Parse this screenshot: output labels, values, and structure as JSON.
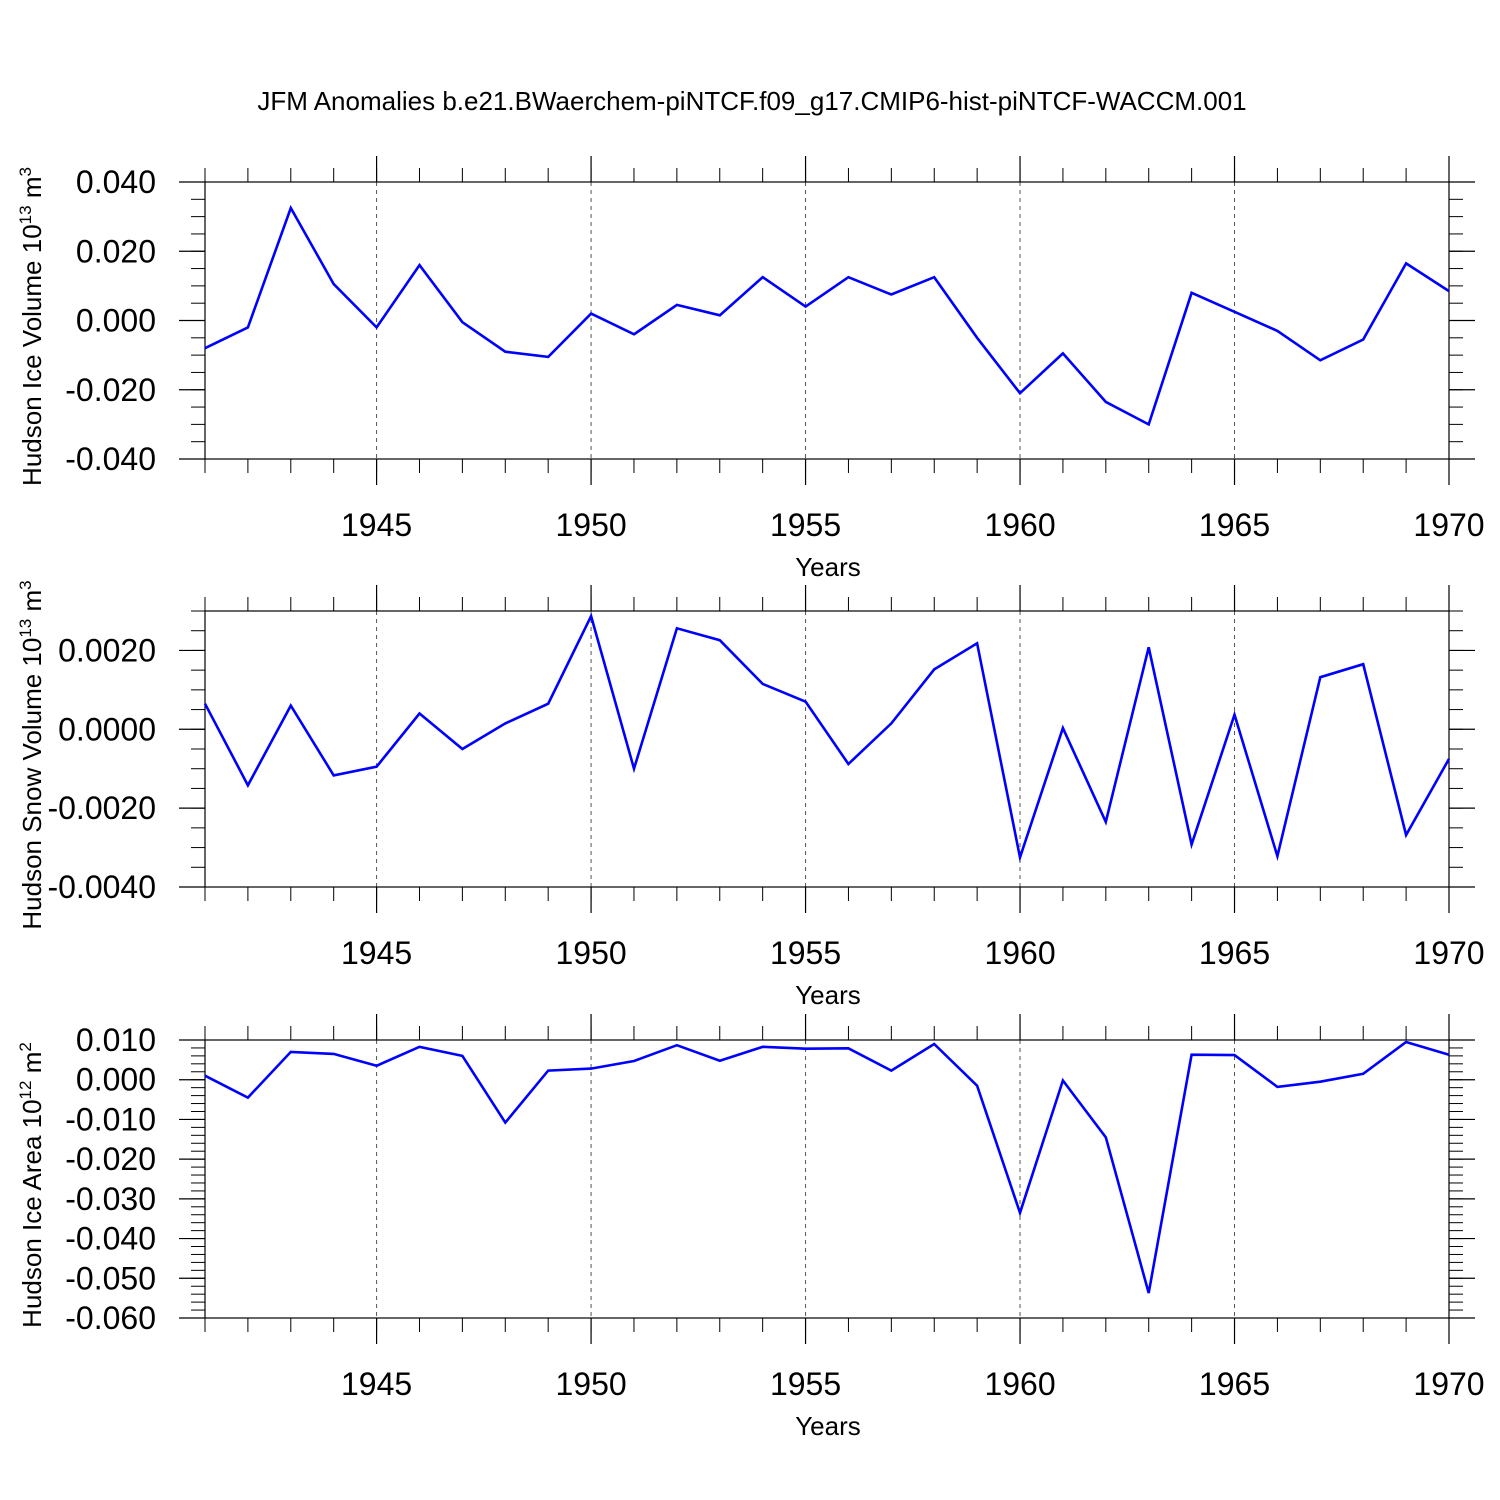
{
  "title": "JFM Anomalies b.e21.BWaerchem-piNTCF.f09_g17.CMIP6-hist-piNTCF-WACCM.001",
  "series_color": "#0000ff",
  "chart_data": [
    {
      "type": "line",
      "ylabel": "Hudson Ice Volume",
      "ylabel_unit_base": "10",
      "ylabel_unit_exp": "13",
      "ylabel_unit_tail": " m",
      "ylabel_unit_tail_exp": "3",
      "xlabel": "Years",
      "xlim": [
        1941,
        1970
      ],
      "ylim": [
        -0.04,
        0.04
      ],
      "xticks": [
        1945,
        1950,
        1955,
        1960,
        1965,
        1970
      ],
      "xtick_labels": [
        "1945",
        "1950",
        "1955",
        "1960",
        "1965",
        "1970"
      ],
      "yticks": [
        -0.04,
        -0.02,
        0.0,
        0.02,
        0.04
      ],
      "ytick_labels": [
        "-0.040",
        "-0.020",
        "0.000",
        "0.020",
        "0.040"
      ],
      "ytick_minor_step": 0.005,
      "x": [
        1941,
        1942,
        1943,
        1944,
        1945,
        1946,
        1947,
        1948,
        1949,
        1950,
        1951,
        1952,
        1953,
        1954,
        1955,
        1956,
        1957,
        1958,
        1959,
        1960,
        1961,
        1962,
        1963,
        1964,
        1965,
        1966,
        1967,
        1968,
        1969,
        1970
      ],
      "values": [
        -0.008,
        -0.002,
        0.0325,
        0.0105,
        -0.002,
        0.016,
        -0.0005,
        -0.009,
        -0.0105,
        0.002,
        -0.004,
        0.0045,
        0.0015,
        0.0125,
        0.004,
        0.0125,
        0.0075,
        0.0125,
        -0.005,
        -0.021,
        -0.0095,
        -0.0235,
        -0.03,
        0.008,
        0.0025,
        -0.003,
        -0.0115,
        -0.0055,
        0.0165,
        0.0085
      ]
    },
    {
      "type": "line",
      "ylabel": "Hudson Snow Volume",
      "ylabel_unit_base": "10",
      "ylabel_unit_exp": "13",
      "ylabel_unit_tail": " m",
      "ylabel_unit_tail_exp": "3",
      "xlabel": "Years",
      "xlim": [
        1941,
        1970
      ],
      "ylim": [
        -0.004,
        0.003
      ],
      "xticks": [
        1945,
        1950,
        1955,
        1960,
        1965,
        1970
      ],
      "xtick_labels": [
        "1945",
        "1950",
        "1955",
        "1960",
        "1965",
        "1970"
      ],
      "yticks": [
        -0.004,
        -0.002,
        0.0,
        0.002
      ],
      "ytick_labels": [
        "-0.0040",
        "-0.0020",
        "0.0000",
        "0.0020"
      ],
      "ytick_minor_step": 0.0005,
      "x": [
        1941,
        1942,
        1943,
        1944,
        1945,
        1946,
        1947,
        1948,
        1949,
        1950,
        1951,
        1952,
        1953,
        1954,
        1955,
        1956,
        1957,
        1958,
        1959,
        1960,
        1961,
        1962,
        1963,
        1964,
        1965,
        1966,
        1967,
        1968,
        1969,
        1970
      ],
      "values": [
        0.00065,
        -0.00142,
        0.0006,
        -0.00117,
        -0.00095,
        0.0004,
        -0.0005,
        0.00015,
        0.00065,
        0.00287,
        -0.001,
        0.00256,
        0.00226,
        0.00115,
        0.0007,
        -0.00088,
        0.00015,
        0.00152,
        0.00218,
        -0.00325,
        3e-05,
        -0.00235,
        0.00208,
        -0.00292,
        0.00037,
        -0.00322,
        0.00132,
        0.00165,
        -0.00268,
        -0.00075
      ]
    },
    {
      "type": "line",
      "ylabel": "Hudson Ice Area",
      "ylabel_unit_base": "10",
      "ylabel_unit_exp": "12",
      "ylabel_unit_tail": " m",
      "ylabel_unit_tail_exp": "2",
      "xlabel": "Years",
      "xlim": [
        1941,
        1970
      ],
      "ylim": [
        -0.06,
        0.01
      ],
      "xticks": [
        1945,
        1950,
        1955,
        1960,
        1965,
        1970
      ],
      "xtick_labels": [
        "1945",
        "1950",
        "1955",
        "1960",
        "1965",
        "1970"
      ],
      "yticks": [
        -0.06,
        -0.05,
        -0.04,
        -0.03,
        -0.02,
        -0.01,
        0.0,
        0.01
      ],
      "ytick_labels": [
        "-0.060",
        "-0.050",
        "-0.040",
        "-0.030",
        "-0.020",
        "-0.010",
        "0.000",
        "0.010"
      ],
      "ytick_minor_step": 0.002,
      "x": [
        1941,
        1942,
        1943,
        1944,
        1945,
        1946,
        1947,
        1948,
        1949,
        1950,
        1951,
        1952,
        1953,
        1954,
        1955,
        1956,
        1957,
        1958,
        1959,
        1960,
        1961,
        1962,
        1963,
        1964,
        1965,
        1966,
        1967,
        1968,
        1969,
        1970
      ],
      "values": [
        0.001,
        -0.0045,
        0.007,
        0.0065,
        0.0035,
        0.0083,
        0.006,
        -0.0108,
        0.0023,
        0.0028,
        0.0047,
        0.0087,
        0.0048,
        0.0083,
        0.0078,
        0.0079,
        0.0023,
        0.009,
        -0.0015,
        -0.0335,
        -0.0002,
        -0.0145,
        -0.0537,
        0.0063,
        0.0062,
        -0.0018,
        -0.0005,
        0.0015,
        0.0095,
        0.0063
      ]
    }
  ]
}
